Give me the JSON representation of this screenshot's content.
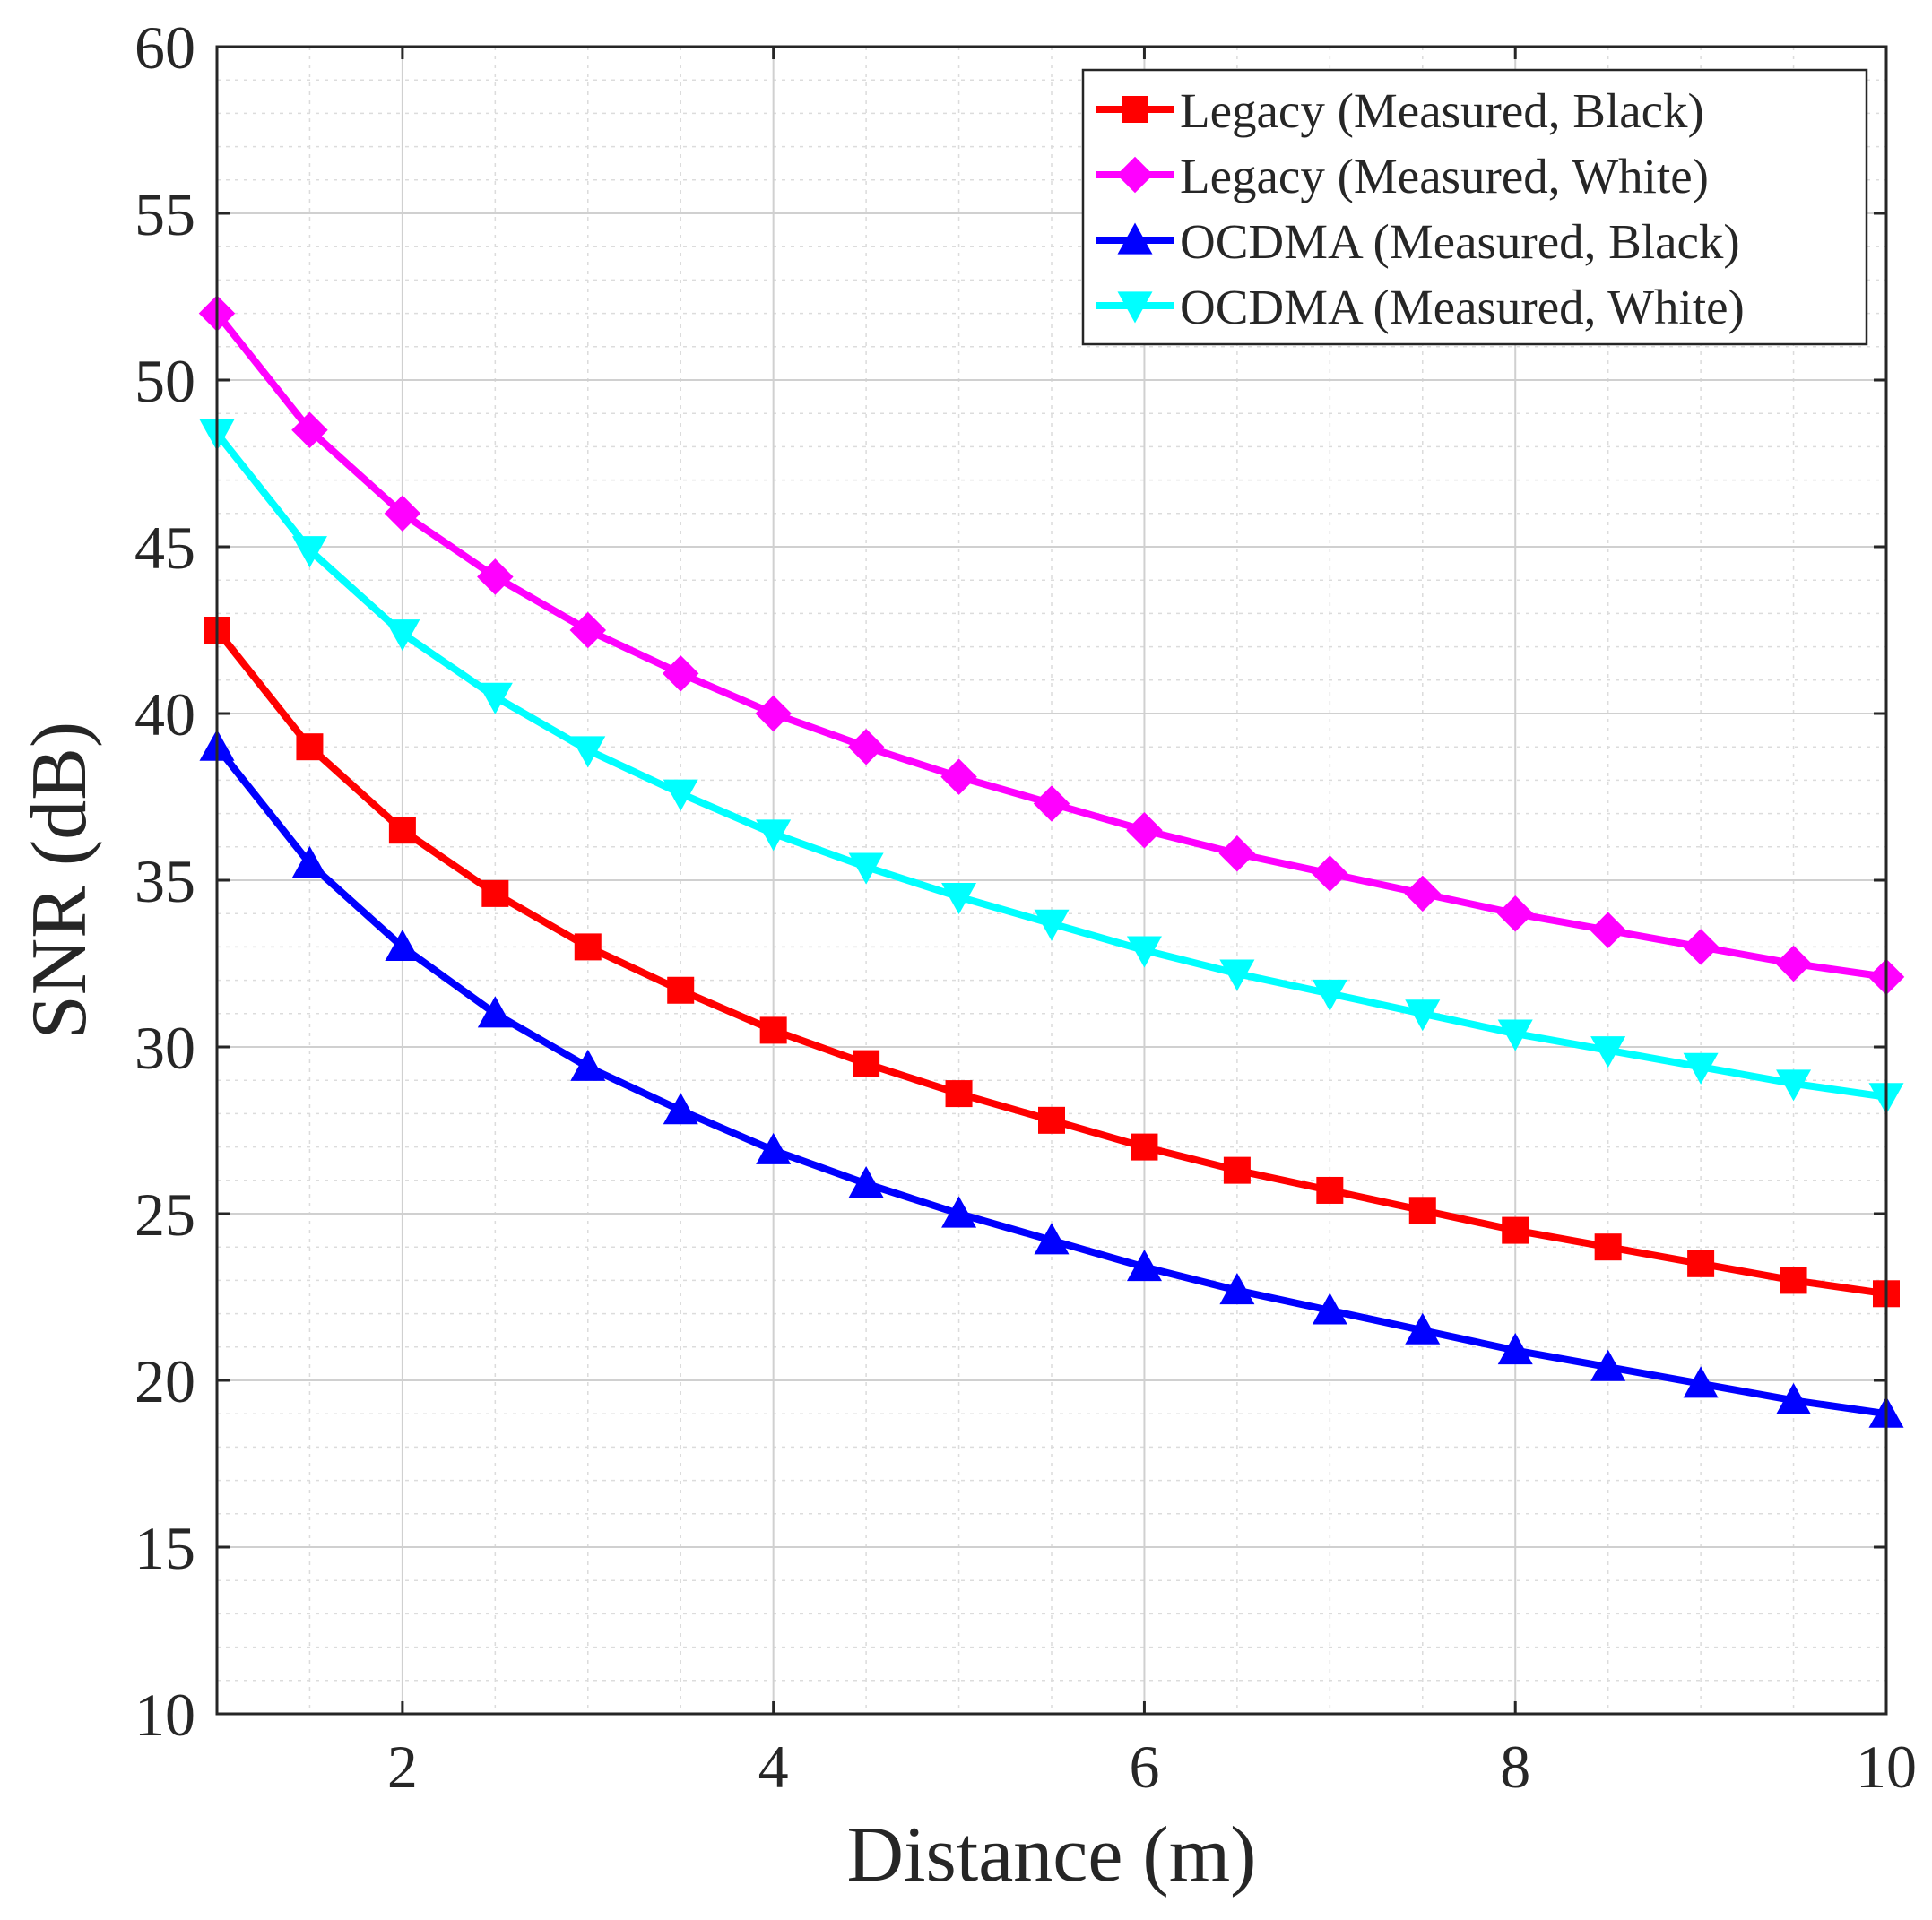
{
  "chart_data": {
    "type": "line",
    "title": "",
    "xlabel": "Distance (m)",
    "ylabel": "SNR (dB)",
    "xlim": [
      1,
      10
    ],
    "ylim": [
      10,
      60
    ],
    "xticks": [
      2,
      4,
      6,
      8,
      10
    ],
    "yticks": [
      10,
      15,
      20,
      25,
      30,
      35,
      40,
      45,
      50,
      55,
      60
    ],
    "grid": true,
    "minor_grid": true,
    "legend_position": "top-right",
    "x": [
      1,
      1.5,
      2,
      2.5,
      3,
      3.5,
      4,
      4.5,
      5,
      5.5,
      6,
      6.5,
      7,
      7.5,
      8,
      8.5,
      9,
      9.5,
      10
    ],
    "series": [
      {
        "name": "Legacy (Measured, Black)",
        "color": "#ff0000",
        "marker": "square",
        "values": [
          42.5,
          39.0,
          36.5,
          34.6,
          33.0,
          31.7,
          30.5,
          29.5,
          28.6,
          27.8,
          27.0,
          26.3,
          25.7,
          25.1,
          24.5,
          24.0,
          23.5,
          23.0,
          22.6
        ]
      },
      {
        "name": "Legacy (Measured, White)",
        "color": "#ff00ff",
        "marker": "diamond",
        "values": [
          52.0,
          48.5,
          46.0,
          44.1,
          42.5,
          41.2,
          40.0,
          39.0,
          38.1,
          37.3,
          36.5,
          35.8,
          35.2,
          34.6,
          34.0,
          33.5,
          33.0,
          32.5,
          32.1
        ]
      },
      {
        "name": "OCDMA (Measured, Black)",
        "color": "#0000ff",
        "marker": "triangle-up",
        "values": [
          39.0,
          35.5,
          33.0,
          31.0,
          29.4,
          28.1,
          26.9,
          25.9,
          25.0,
          24.2,
          23.4,
          22.7,
          22.1,
          21.5,
          20.9,
          20.4,
          19.9,
          19.4,
          19.0
        ]
      },
      {
        "name": "OCDMA (Measured, White)",
        "color": "#00ffff",
        "marker": "triangle-down",
        "values": [
          48.4,
          44.9,
          42.4,
          40.5,
          38.9,
          37.6,
          36.4,
          35.4,
          34.5,
          33.7,
          32.9,
          32.2,
          31.6,
          31.0,
          30.4,
          29.9,
          29.4,
          28.9,
          28.5
        ]
      }
    ]
  }
}
